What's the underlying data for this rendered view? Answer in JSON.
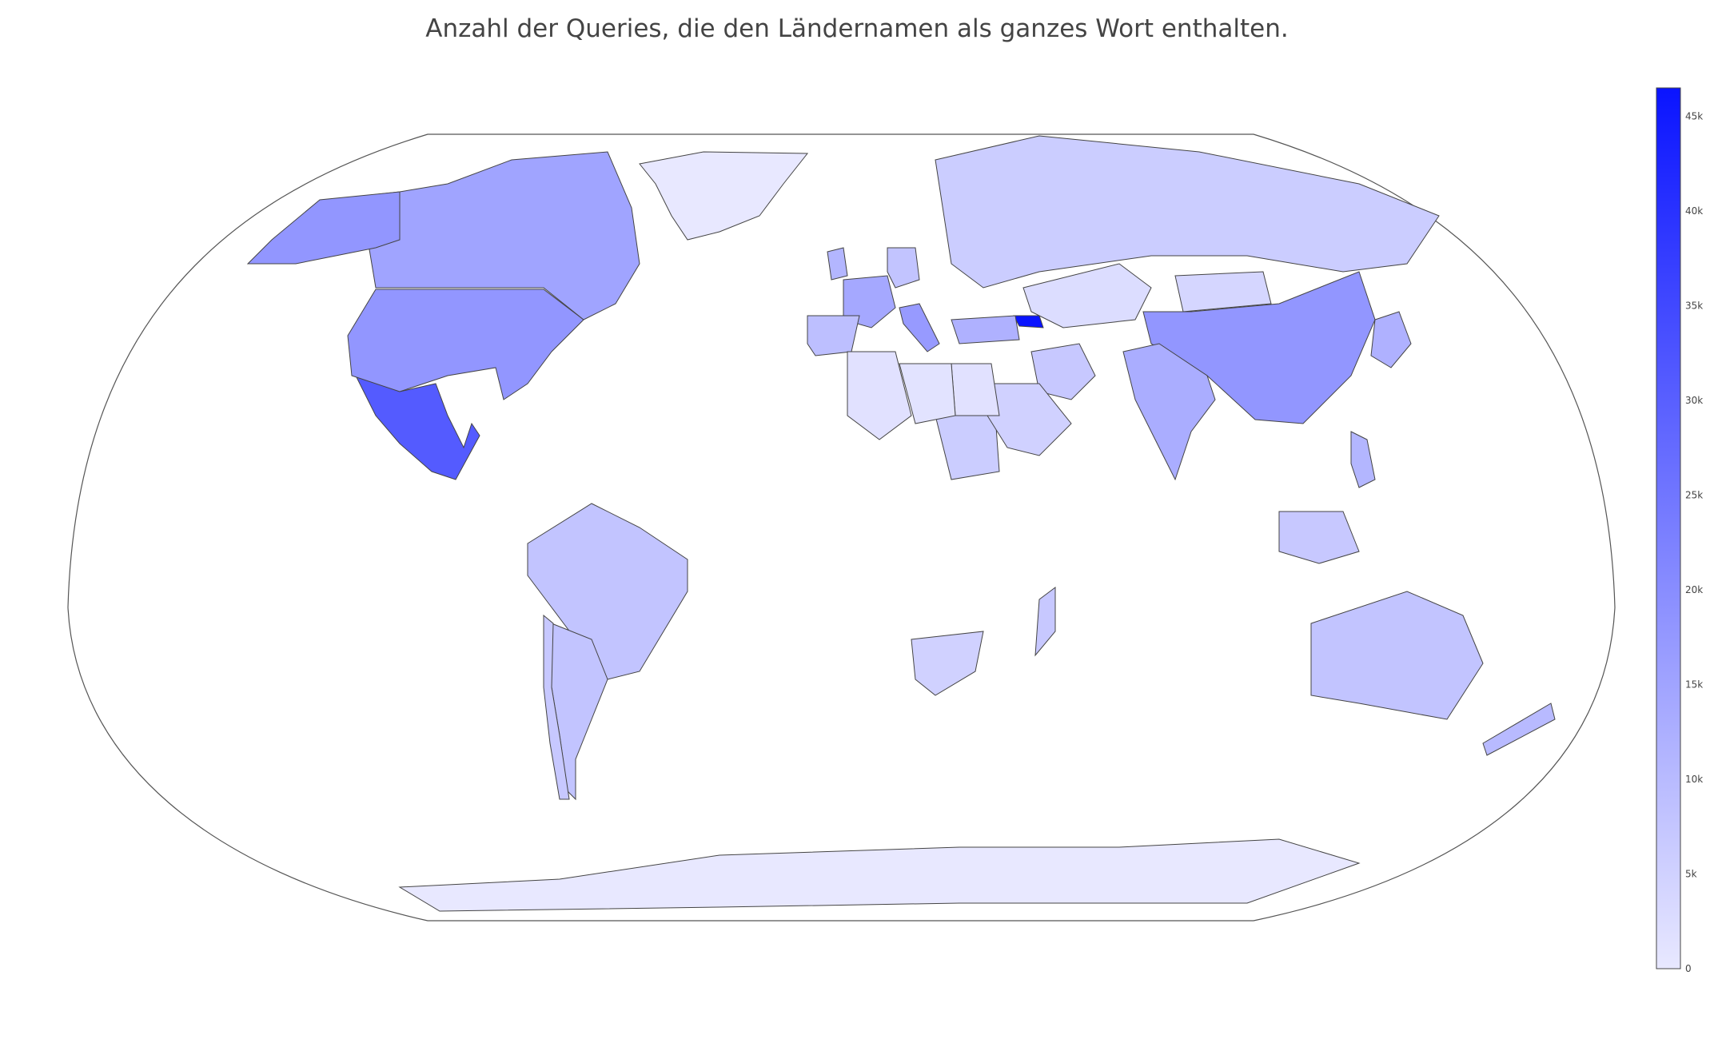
{
  "title": "Anzahl der Queries, die den Ländernamen als ganzes Wort enthalten.",
  "colors": {
    "scale_low": "#e8e8ff",
    "scale_high": "#0a14ff",
    "border": "#444444",
    "ocean": "#ffffff"
  },
  "colorbar": {
    "min": 0,
    "max": 46500,
    "ticks": [
      {
        "value": 0,
        "label": "0"
      },
      {
        "value": 5000,
        "label": "5k"
      },
      {
        "value": 10000,
        "label": "10k"
      },
      {
        "value": 15000,
        "label": "15k"
      },
      {
        "value": 20000,
        "label": "20k"
      },
      {
        "value": 25000,
        "label": "25k"
      },
      {
        "value": 30000,
        "label": "30k"
      },
      {
        "value": 35000,
        "label": "35k"
      },
      {
        "value": 40000,
        "label": "40k"
      },
      {
        "value": 45000,
        "label": "45k"
      }
    ]
  },
  "chart_data": {
    "type": "choropleth",
    "title": "Anzahl der Queries, die den Ländernamen als ganzes Wort enthalten.",
    "projection": "robinson",
    "zmin": 0,
    "zmax": 46500,
    "regions": [
      {
        "name": "Georgia",
        "value": 46500
      },
      {
        "name": "Mexico",
        "value": 31000
      },
      {
        "name": "United States",
        "value": 18000
      },
      {
        "name": "Canada",
        "value": 15000
      },
      {
        "name": "Alaska (US)",
        "value": 18000
      },
      {
        "name": "China",
        "value": 18000
      },
      {
        "name": "Italy",
        "value": 17000
      },
      {
        "name": "France",
        "value": 14000
      },
      {
        "name": "India",
        "value": 13000
      },
      {
        "name": "Japan",
        "value": 12000
      },
      {
        "name": "Philippines",
        "value": 11000
      },
      {
        "name": "Brazil",
        "value": 8000
      },
      {
        "name": "Australia",
        "value": 8000
      },
      {
        "name": "Russia",
        "value": 6000
      },
      {
        "name": "Argentina",
        "value": 8000
      },
      {
        "name": "Chile",
        "value": 7000
      },
      {
        "name": "Turkey",
        "value": 12000
      },
      {
        "name": "Iran",
        "value": 7000
      },
      {
        "name": "Indonesia",
        "value": 7000
      },
      {
        "name": "Spain",
        "value": 9000
      },
      {
        "name": "Germany",
        "value": 8000
      },
      {
        "name": "United Kingdom",
        "value": 11000
      },
      {
        "name": "Sudan",
        "value": 6000
      },
      {
        "name": "Saudi Arabia",
        "value": 5000
      },
      {
        "name": "Kazakhstan",
        "value": 2500
      },
      {
        "name": "Mongolia",
        "value": 4000
      },
      {
        "name": "Egypt",
        "value": 1500
      },
      {
        "name": "Algeria",
        "value": 1500
      },
      {
        "name": "Libya",
        "value": 1200
      },
      {
        "name": "South Africa",
        "value": 5000
      },
      {
        "name": "Madagascar",
        "value": 7000
      },
      {
        "name": "New Zealand",
        "value": 10000
      },
      {
        "name": "Greenland",
        "value": 0
      },
      {
        "name": "Antarctica",
        "value": 0
      }
    ]
  }
}
